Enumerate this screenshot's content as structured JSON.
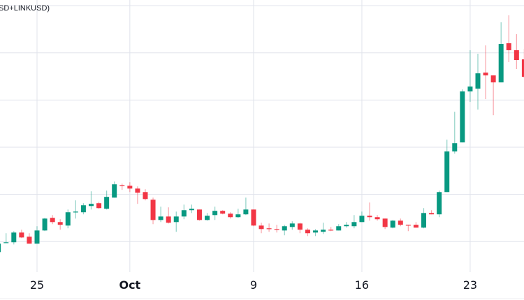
{
  "chart_data": {
    "type": "candlestick",
    "title": "SD+LINKUSD)",
    "xlabel": "",
    "ylabel": "",
    "ylim": [
      6.4,
      35.6
    ],
    "y_gridlines": [
      10,
      15,
      20,
      25,
      30,
      35
    ],
    "grid": true,
    "colors": {
      "up": "#089981",
      "down": "#f23645",
      "grid": "#e0e3eb",
      "text": "#131722"
    },
    "x_ticks": [
      {
        "index": 5,
        "label": "25",
        "bold": false
      },
      {
        "index": 17,
        "label": "Oct",
        "bold": true
      },
      {
        "index": 33,
        "label": "9",
        "bold": false
      },
      {
        "index": 47,
        "label": "16",
        "bold": false
      },
      {
        "index": 61,
        "label": "23",
        "bold": false
      }
    ],
    "candles_ohlc": [
      [
        8.89,
        10.0,
        8.82,
        9.78
      ],
      [
        9.85,
        10.89,
        9.85,
        9.93
      ],
      [
        9.93,
        11.11,
        9.7,
        10.96
      ],
      [
        10.96,
        11.26,
        10.37,
        10.44
      ],
      [
        10.52,
        10.89,
        9.78,
        9.78
      ],
      [
        9.78,
        11.63,
        9.78,
        11.18
      ],
      [
        11.18,
        12.52,
        11.11,
        12.44
      ],
      [
        12.52,
        12.81,
        11.85,
        12.07
      ],
      [
        12.07,
        12.37,
        11.26,
        11.78
      ],
      [
        11.7,
        13.4,
        11.41,
        13.11
      ],
      [
        13.11,
        14.37,
        12.44,
        13.18
      ],
      [
        13.11,
        14.07,
        12.89,
        13.85
      ],
      [
        13.77,
        15.33,
        13.4,
        14.0
      ],
      [
        14.07,
        14.22,
        13.48,
        13.55
      ],
      [
        13.48,
        15.4,
        13.4,
        14.74
      ],
      [
        14.66,
        16.36,
        14.66,
        16.07
      ],
      [
        15.99,
        16.14,
        15.48,
        15.92
      ],
      [
        15.92,
        16.29,
        15.25,
        15.62
      ],
      [
        15.62,
        15.85,
        14.0,
        15.18
      ],
      [
        15.25,
        15.55,
        14.37,
        14.51
      ],
      [
        14.44,
        14.66,
        11.85,
        12.29
      ],
      [
        12.29,
        13.7,
        12.07,
        12.66
      ],
      [
        12.66,
        13.63,
        11.92,
        12.0
      ],
      [
        12.07,
        13.18,
        11.04,
        12.66
      ],
      [
        12.66,
        13.92,
        12.37,
        13.33
      ],
      [
        13.33,
        13.92,
        13.03,
        13.48
      ],
      [
        13.4,
        13.4,
        12.22,
        12.29
      ],
      [
        12.29,
        13.03,
        12.22,
        12.74
      ],
      [
        12.81,
        13.7,
        12.29,
        13.26
      ],
      [
        13.26,
        13.33,
        12.89,
        12.96
      ],
      [
        12.96,
        13.11,
        12.44,
        12.59
      ],
      [
        12.59,
        13.48,
        12.52,
        12.89
      ],
      [
        12.89,
        14.66,
        12.81,
        13.4
      ],
      [
        13.4,
        13.4,
        11.63,
        11.7
      ],
      [
        11.7,
        12.0,
        10.89,
        11.33
      ],
      [
        11.41,
        11.92,
        11.04,
        11.33
      ],
      [
        11.33,
        11.78,
        10.96,
        11.26
      ],
      [
        11.18,
        11.78,
        10.67,
        11.63
      ],
      [
        11.55,
        12.15,
        11.26,
        11.92
      ],
      [
        11.92,
        12.0,
        10.89,
        11.26
      ],
      [
        11.26,
        11.41,
        10.59,
        10.89
      ],
      [
        10.96,
        11.33,
        10.59,
        11.18
      ],
      [
        11.04,
        12.0,
        10.81,
        11.26
      ],
      [
        11.26,
        11.55,
        11.11,
        11.18
      ],
      [
        11.18,
        11.85,
        11.18,
        11.63
      ],
      [
        11.63,
        12.07,
        11.48,
        11.78
      ],
      [
        11.63,
        12.81,
        11.41,
        12.07
      ],
      [
        12.07,
        13.18,
        12.07,
        12.74
      ],
      [
        12.74,
        14.14,
        12.22,
        12.59
      ],
      [
        12.59,
        12.81,
        12.22,
        12.37
      ],
      [
        12.44,
        12.44,
        11.33,
        11.55
      ],
      [
        11.48,
        12.29,
        11.41,
        12.22
      ],
      [
        12.22,
        12.44,
        11.63,
        11.78
      ],
      [
        11.78,
        11.78,
        11.11,
        11.7
      ],
      [
        11.78,
        12.07,
        11.48,
        11.48
      ],
      [
        11.48,
        13.55,
        11.41,
        13.03
      ],
      [
        13.03,
        13.33,
        12.89,
        12.89
      ],
      [
        12.89,
        15.4,
        12.59,
        15.25
      ],
      [
        15.25,
        20.8,
        15.25,
        19.55
      ],
      [
        19.55,
        23.76,
        19.32,
        20.43
      ],
      [
        20.51,
        26.13,
        20.51,
        25.91
      ],
      [
        25.91,
        30.28,
        24.8,
        26.43
      ],
      [
        26.21,
        29.91,
        23.99,
        27.83
      ],
      [
        27.91,
        30.79,
        25.1,
        27.61
      ],
      [
        27.61,
        27.61,
        23.39,
        26.87
      ],
      [
        26.87,
        33.24,
        26.87,
        30.94
      ],
      [
        31.02,
        33.98,
        29.02,
        30.28
      ],
      [
        30.28,
        31.98,
        28.28,
        29.24
      ],
      [
        29.31,
        30.42,
        27.32,
        27.46
      ]
    ]
  }
}
